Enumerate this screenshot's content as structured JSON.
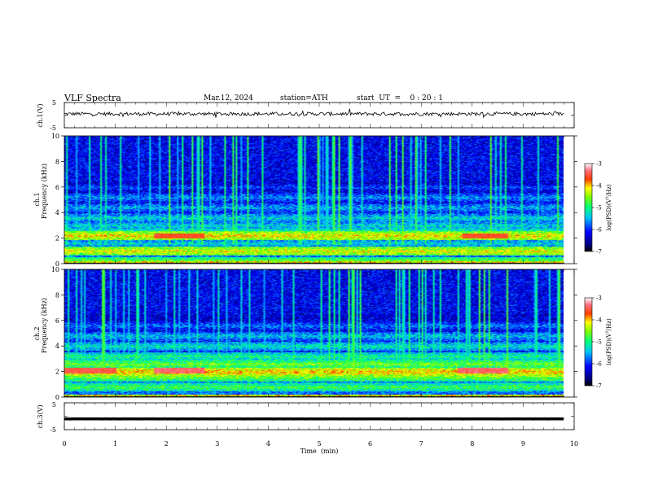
{
  "header": {
    "title": "VLF  Spectra",
    "date": "Mar.12, 2024",
    "station": "station=ATH",
    "start_ut": "start  UT  =    0 : 20 : 1"
  },
  "chart_data": [
    {
      "type": "line",
      "name": "ch1-waveform",
      "ylabel": "ch.1(V)",
      "ylim": [
        -5,
        5
      ],
      "y_tick_labels": [
        "5",
        "-5"
      ],
      "xlim": [
        0,
        10
      ],
      "data_end_min": 9.8,
      "baseline_v": 0.5
    },
    {
      "type": "heatmap",
      "name": "ch1-spectrogram",
      "ylabel": "ch.1\nFrequency  (kHz)",
      "ylim": [
        0,
        10
      ],
      "y_tick_labels": [
        "0",
        "2",
        "4",
        "6",
        "8",
        "10"
      ],
      "xlim": [
        0,
        10
      ],
      "data_end_min": 9.8,
      "colorbar": {
        "label": "log(PSD)(V²/Hz)",
        "ticks": [
          "-3",
          "-4",
          "-5",
          "-6",
          "-7"
        ],
        "range": [
          -7,
          -3
        ]
      },
      "bands_khz_level": [
        [
          0.2,
          -4.6
        ],
        [
          1.0,
          -4.2
        ],
        [
          1.6,
          -5.3
        ],
        [
          2.2,
          -4.1
        ],
        [
          2.5,
          -5.0
        ],
        [
          3.0,
          -5.3
        ],
        [
          3.6,
          -5.3
        ],
        [
          4.4,
          -5.5
        ],
        [
          5.2,
          -5.6
        ],
        [
          6.0,
          -5.9
        ]
      ],
      "bright_patches": [
        {
          "t0": 1.75,
          "t1": 2.75,
          "f0": 2.0,
          "f1": 2.4,
          "level": -3.6
        },
        {
          "t0": 7.8,
          "t1": 8.7,
          "f0": 2.0,
          "f1": 2.4,
          "level": -3.6
        }
      ]
    },
    {
      "type": "heatmap",
      "name": "ch2-spectrogram",
      "ylabel": "ch.2\nFrequency  (kHz)",
      "ylim": [
        0,
        10
      ],
      "y_tick_labels": [
        "0",
        "2",
        "4",
        "6",
        "8",
        "10"
      ],
      "xlim": [
        0,
        10
      ],
      "data_end_min": 9.8,
      "colorbar": {
        "label": "log(PSD)(V²/Hz)",
        "ticks": [
          "-3",
          "-4",
          "-5",
          "-6",
          "-7"
        ],
        "range": [
          -7,
          -3
        ]
      },
      "bands_khz_level": [
        [
          0.8,
          -4.8
        ],
        [
          1.6,
          -4.6
        ],
        [
          2.0,
          -4.0
        ],
        [
          2.6,
          -4.6
        ],
        [
          3.2,
          -5.0
        ],
        [
          4.0,
          -5.2
        ],
        [
          4.8,
          -5.4
        ],
        [
          5.6,
          -5.7
        ]
      ],
      "bright_patches": [
        {
          "t0": 0.0,
          "t1": 1.0,
          "f0": 1.9,
          "f1": 2.3,
          "level": -3.5
        },
        {
          "t0": 1.75,
          "t1": 2.75,
          "f0": 1.9,
          "f1": 2.3,
          "level": -3.4
        },
        {
          "t0": 7.7,
          "t1": 8.7,
          "f0": 1.9,
          "f1": 2.3,
          "level": -3.4
        }
      ]
    },
    {
      "type": "line",
      "name": "ch3-waveform",
      "ylabel": "ch.3(V)",
      "ylim": [
        -5,
        5
      ],
      "y_tick_labels": [
        "5",
        "-5"
      ],
      "xlim": [
        0,
        10
      ],
      "data_end_min": 9.8,
      "baseline_v": -1.0
    }
  ],
  "x_axis": {
    "label": "Time  (min)",
    "tick_labels": [
      "0",
      "1",
      "2",
      "3",
      "4",
      "5",
      "6",
      "7",
      "8",
      "9",
      "10"
    ]
  }
}
